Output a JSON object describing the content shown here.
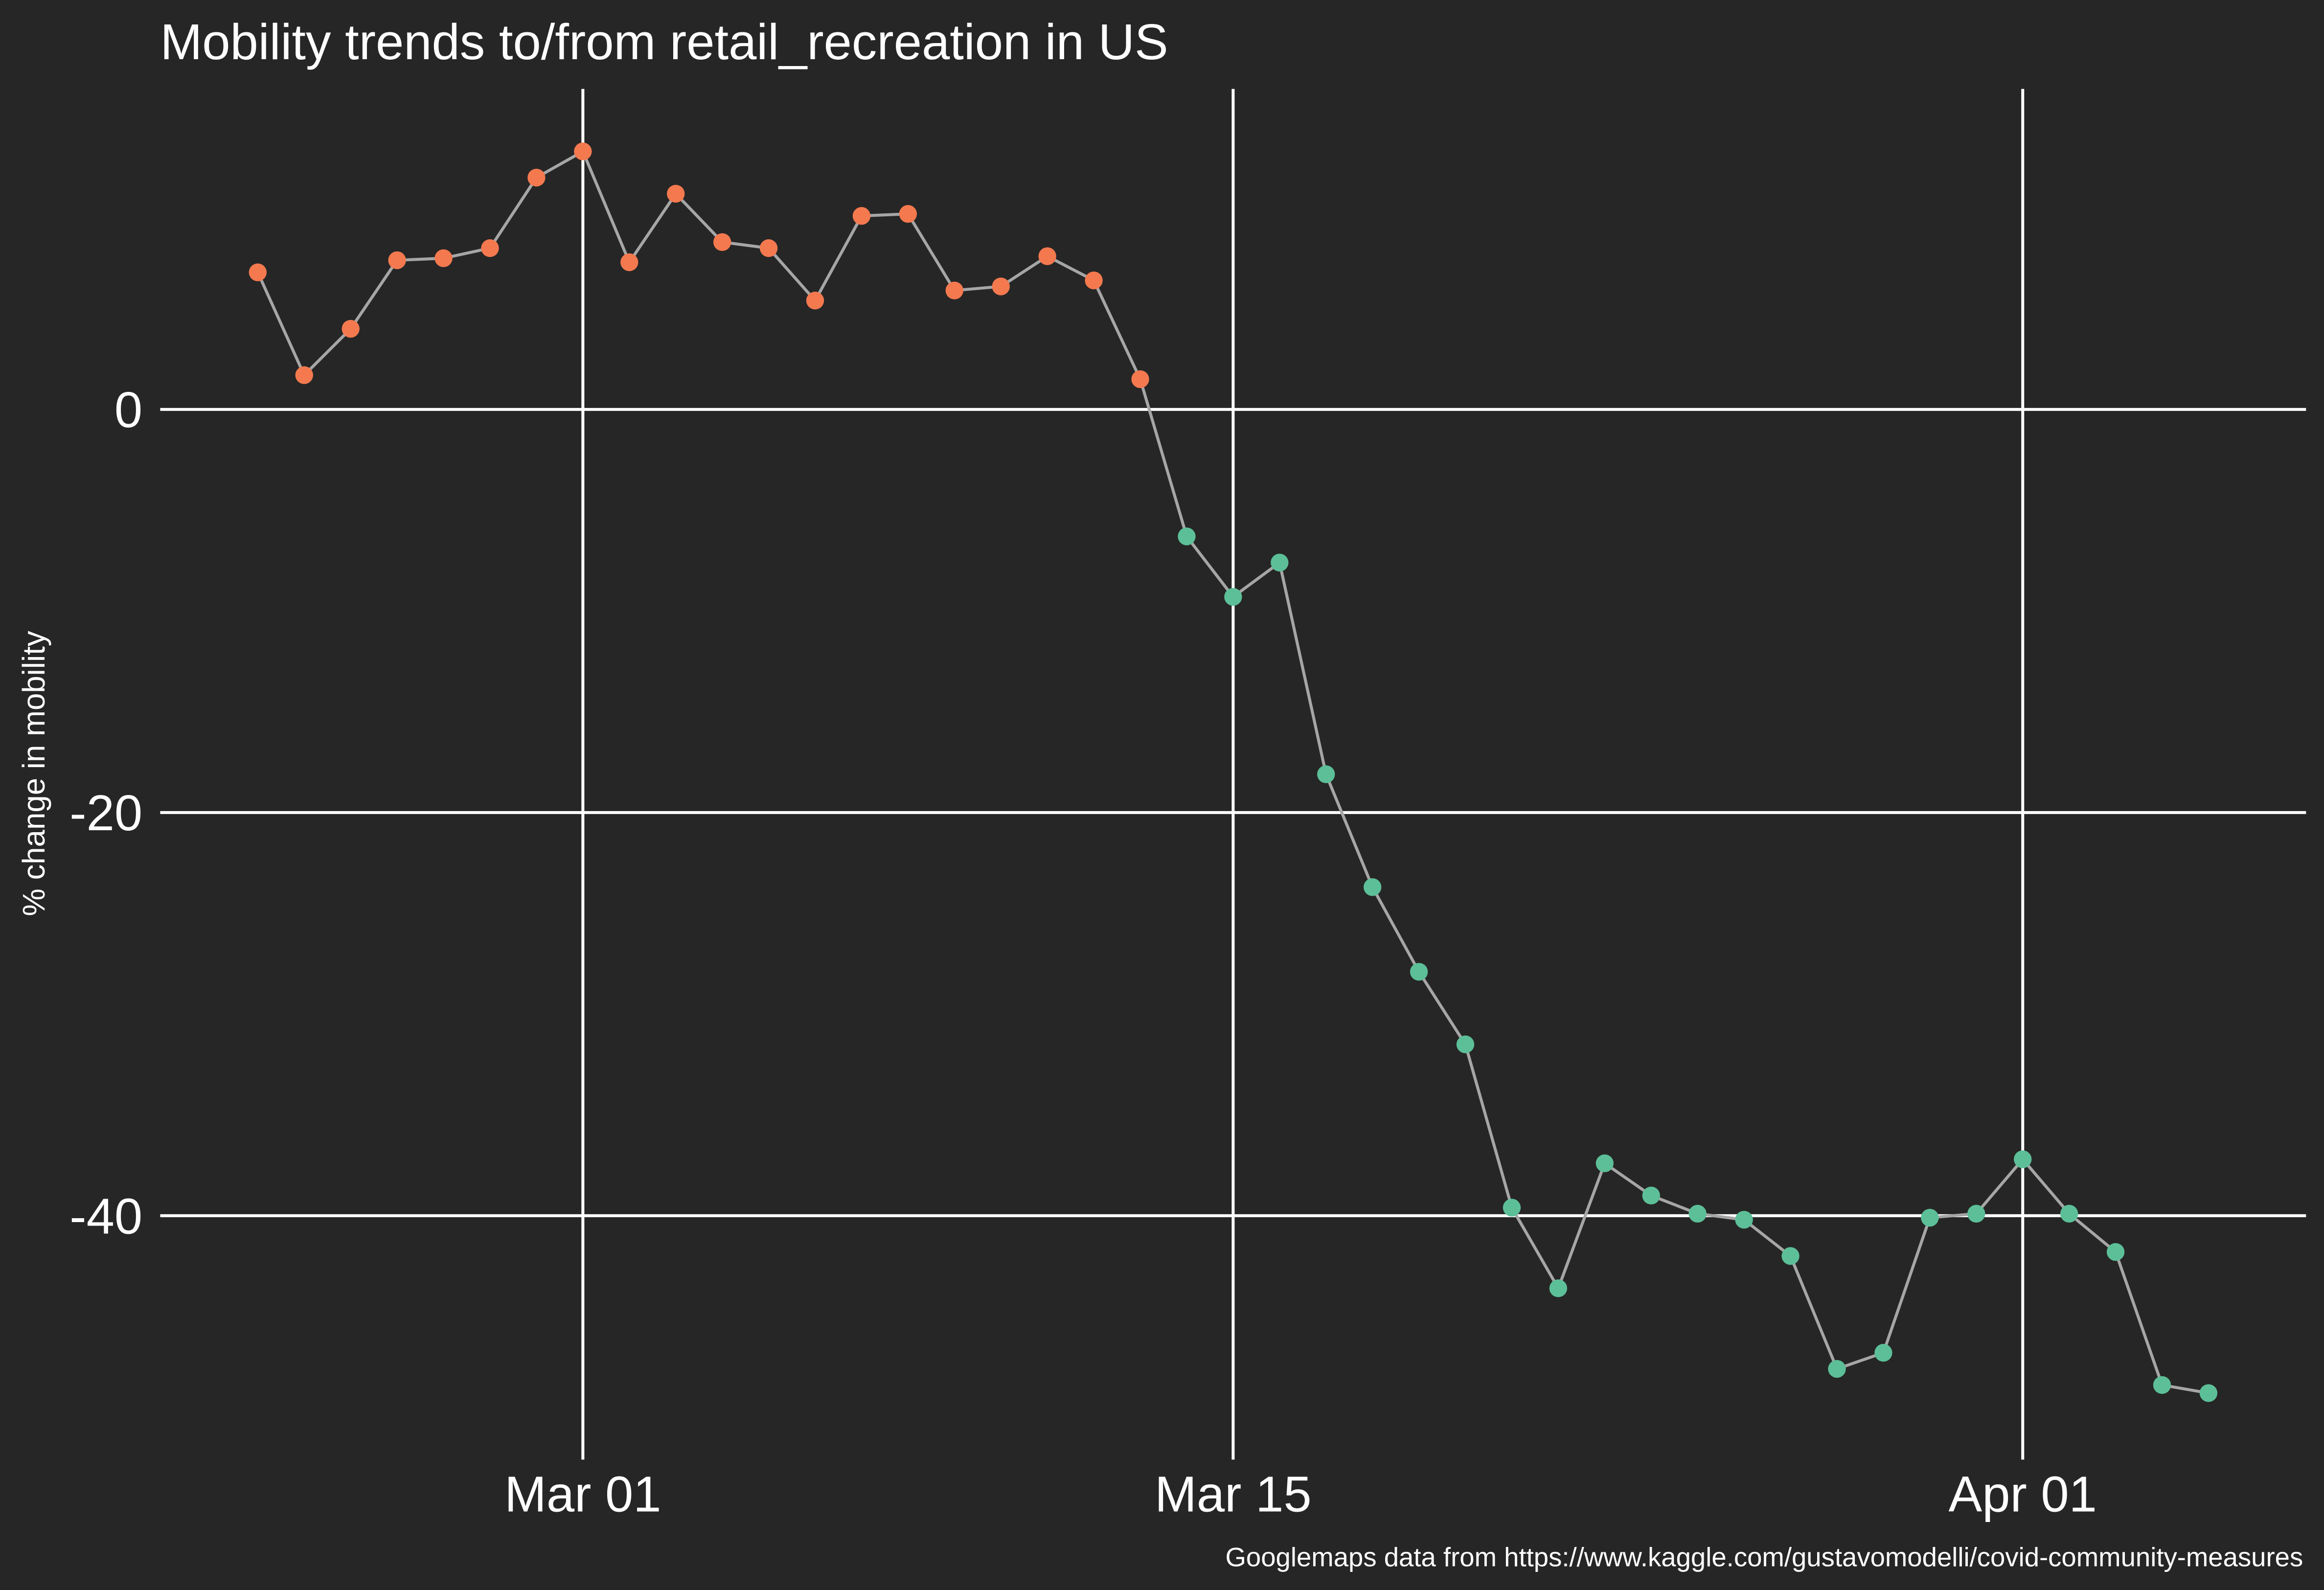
{
  "chart_data": {
    "type": "line",
    "title": "Mobility trends to/from retail_recreation in US",
    "y_label": "% change in mobility",
    "caption": "Googlemaps data from https://www.kaggle.com/gustavomodelli/covid-community-measures",
    "x": [
      "Feb 23",
      "Feb 24",
      "Feb 25",
      "Feb 26",
      "Feb 27",
      "Feb 28",
      "Feb 29",
      "Mar 01",
      "Mar 02",
      "Mar 03",
      "Mar 04",
      "Mar 05",
      "Mar 06",
      "Mar 07",
      "Mar 08",
      "Mar 09",
      "Mar 10",
      "Mar 11",
      "Mar 12",
      "Mar 13",
      "Mar 14",
      "Mar 15",
      "Mar 16",
      "Mar 17",
      "Mar 18",
      "Mar 19",
      "Mar 20",
      "Mar 21",
      "Mar 22",
      "Mar 23",
      "Mar 24",
      "Mar 25",
      "Mar 26",
      "Mar 27",
      "Mar 28",
      "Mar 29",
      "Mar 30",
      "Mar 31",
      "Apr 01",
      "Apr 02",
      "Apr 03",
      "Apr 04",
      "Apr 05"
    ],
    "values": [
      6.8,
      1.7,
      4.0,
      7.4,
      7.5,
      8.0,
      11.5,
      12.8,
      7.3,
      10.7,
      8.3,
      8.0,
      5.4,
      9.6,
      9.7,
      5.9,
      6.1,
      7.6,
      6.4,
      1.5,
      -6.3,
      -9.3,
      -7.6,
      -18.1,
      -23.7,
      -27.9,
      -31.5,
      -39.6,
      -43.6,
      -37.4,
      -39.0,
      -39.9,
      -40.2,
      -42.0,
      -47.6,
      -46.8,
      -40.1,
      -39.9,
      -37.2,
      -39.9,
      -41.8,
      -48.4,
      -48.8
    ],
    "point_colors": [
      "#f4794f",
      "#f4794f",
      "#f4794f",
      "#f4794f",
      "#f4794f",
      "#f4794f",
      "#f4794f",
      "#f4794f",
      "#f4794f",
      "#f4794f",
      "#f4794f",
      "#f4794f",
      "#f4794f",
      "#f4794f",
      "#f4794f",
      "#f4794f",
      "#f4794f",
      "#f4794f",
      "#f4794f",
      "#f4794f",
      "#5cbf98",
      "#5cbf98",
      "#5cbf98",
      "#5cbf98",
      "#5cbf98",
      "#5cbf98",
      "#5cbf98",
      "#5cbf98",
      "#5cbf98",
      "#5cbf98",
      "#5cbf98",
      "#5cbf98",
      "#5cbf98",
      "#5cbf98",
      "#5cbf98",
      "#5cbf98",
      "#5cbf98",
      "#5cbf98",
      "#5cbf98",
      "#5cbf98",
      "#5cbf98",
      "#5cbf98",
      "#5cbf98"
    ],
    "line_color": "#a6a6a6",
    "xticks": [
      "Mar 01",
      "Mar 15",
      "Apr 01"
    ],
    "ylim": [
      -52.1,
      15.9
    ],
    "yticks": [
      -40,
      -20,
      0
    ],
    "grid": true
  }
}
